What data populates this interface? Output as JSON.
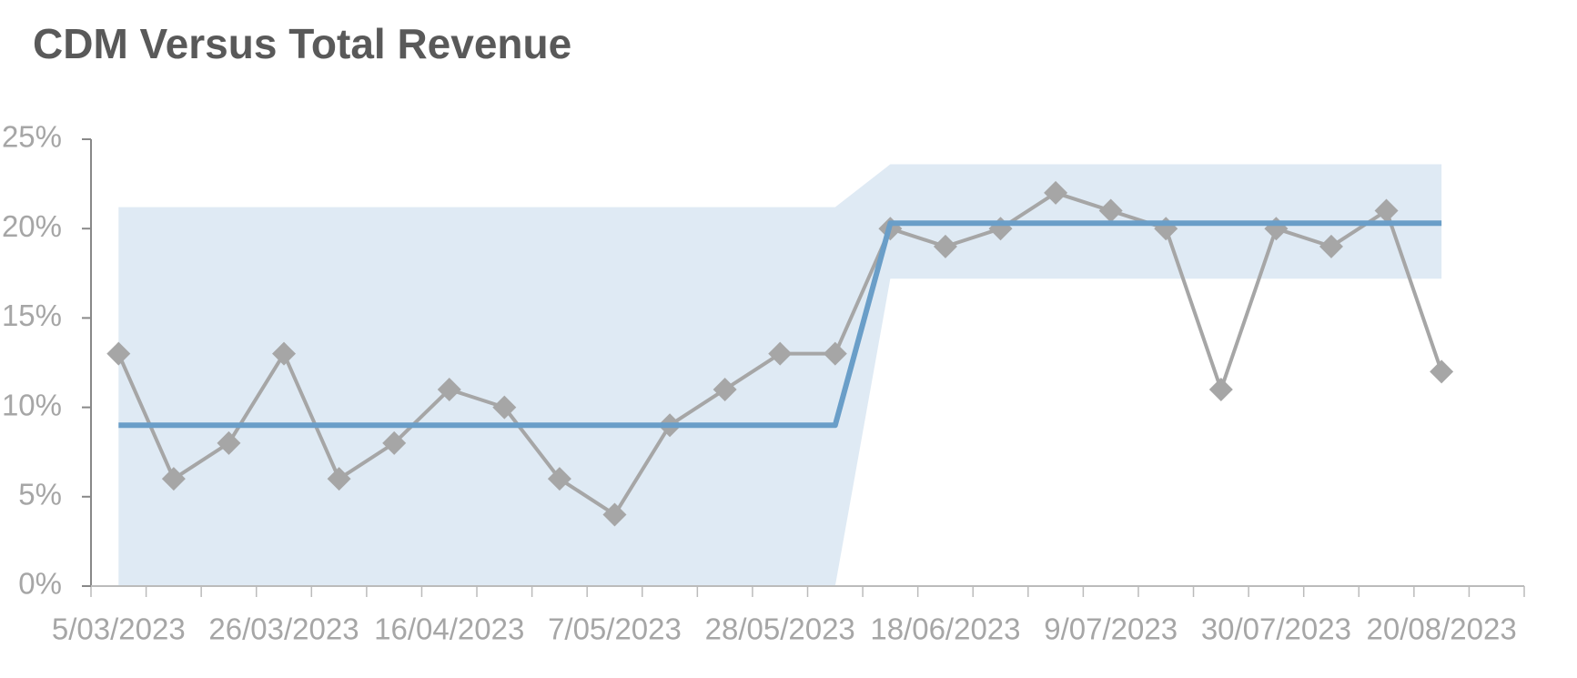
{
  "chart_data": {
    "type": "line",
    "title": "CDM Versus Total Revenue",
    "categories": [
      "5/03/2023",
      null,
      null,
      "26/03/2023",
      null,
      null,
      "16/04/2023",
      null,
      null,
      "7/05/2023",
      null,
      null,
      "28/05/2023",
      null,
      null,
      "18/06/2023",
      null,
      null,
      "9/07/2023",
      null,
      null,
      "30/07/2023",
      null,
      null,
      "20/08/2023"
    ],
    "series": [
      {
        "color": "#a6a6a6",
        "marker": "diamond",
        "values": [
          13,
          6,
          8,
          13,
          6,
          8,
          11,
          10,
          6,
          4,
          9,
          11,
          13,
          13,
          20,
          19,
          20,
          22,
          21,
          20,
          11,
          20,
          19,
          21,
          12
        ]
      },
      {
        "color": "#6a9ec8",
        "values": [
          9,
          9,
          9,
          9,
          9,
          9,
          9,
          9,
          9,
          9,
          9,
          9,
          9,
          9,
          20.3,
          20.3,
          20.3,
          20.3,
          20.3,
          20.3,
          20.3,
          20.3,
          20.3,
          20.3,
          20.3
        ]
      }
    ],
    "band": {
      "color": "#dfeaf4",
      "upper": [
        21.2,
        21.2,
        21.2,
        21.2,
        21.2,
        21.2,
        21.2,
        21.2,
        21.2,
        21.2,
        21.2,
        21.2,
        21.2,
        21.2,
        23.6,
        23.6,
        23.6,
        23.6,
        23.6,
        23.6,
        23.6,
        23.6,
        23.6,
        23.6,
        23.6
      ],
      "lower": [
        0,
        0,
        0,
        0,
        0,
        0,
        0,
        0,
        0,
        0,
        0,
        0,
        0,
        0,
        17.2,
        17.2,
        17.2,
        17.2,
        17.2,
        17.2,
        17.2,
        17.2,
        17.2,
        17.2,
        17.2
      ]
    },
    "ylim": [
      0,
      25
    ],
    "yticks": [
      {
        "value": 0,
        "label": "0%"
      },
      {
        "value": 5,
        "label": "5%"
      },
      {
        "value": 10,
        "label": "10%"
      },
      {
        "value": 15,
        "label": "15%"
      },
      {
        "value": 20,
        "label": "20%"
      },
      {
        "value": 25,
        "label": "25%"
      }
    ]
  }
}
